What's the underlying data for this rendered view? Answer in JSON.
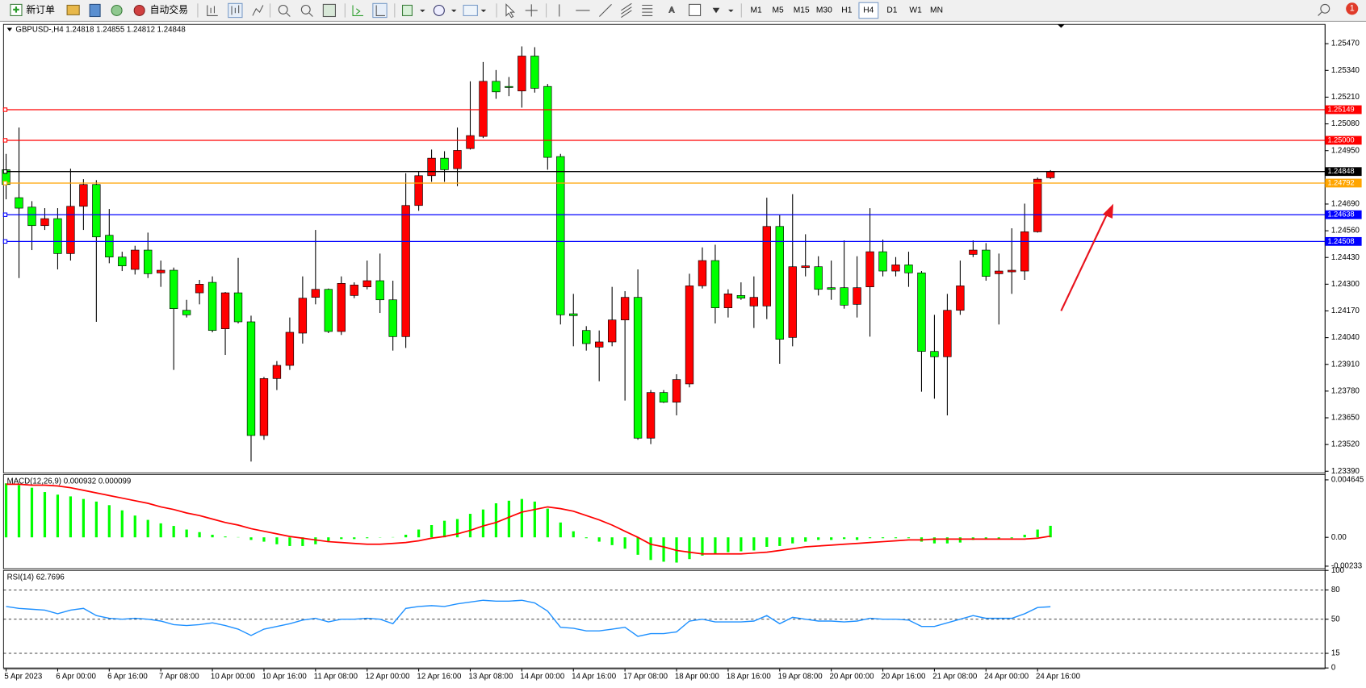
{
  "toolbar": {
    "new_order": "新订单",
    "auto_trading": "自动交易",
    "timeframes": [
      "M1",
      "M5",
      "M15",
      "M30",
      "H1",
      "H4",
      "D1",
      "W1",
      "MN"
    ],
    "active_timeframe": "H4",
    "notification_count": 1
  },
  "chart_data": [
    {
      "type": "candlestick",
      "title": "GBPUSD-,H4  1.24818 1.24855 1.24812 1.24848",
      "categories": [
        "5 Apr 2023",
        null,
        null,
        null,
        "6 Apr 00:00",
        null,
        null,
        null,
        "6 Apr 16:00",
        null,
        null,
        null,
        "7 Apr 08:00",
        null,
        null,
        null,
        "10 Apr 00:00",
        null,
        null,
        null,
        "10 Apr 16:00",
        null,
        null,
        null,
        "11 Apr 08:00",
        null,
        null,
        null,
        "12 Apr 00:00",
        null,
        null,
        null,
        "12 Apr 16:00",
        null,
        null,
        null,
        "13 Apr 08:00",
        null,
        null,
        null,
        "14 Apr 00:00",
        null,
        null,
        null,
        "14 Apr 16:00",
        null,
        null,
        null,
        "17 Apr 08:00",
        null,
        null,
        null,
        "18 Apr 00:00",
        null,
        null,
        null,
        "18 Apr 16:00",
        null,
        null,
        null,
        "19 Apr 08:00",
        null,
        null,
        null,
        "20 Apr 00:00",
        null,
        null,
        null,
        "20 Apr 16:00",
        null,
        null,
        null,
        "21 Apr 08:00",
        null,
        null,
        null,
        "24 Apr 00:00",
        null,
        null,
        null,
        "24 Apr 16:00",
        null
      ],
      "open": [
        1.24857,
        1.24721,
        1.24675,
        1.24585,
        1.24619,
        1.24449,
        1.24679,
        1.24785,
        1.24538,
        1.24432,
        1.24372,
        1.24466,
        1.24355,
        1.24368,
        1.24173,
        1.24258,
        1.24309,
        1.24083,
        1.24258,
        1.24117,
        1.23564,
        1.23841,
        1.23905,
        1.24062,
        1.24236,
        1.24275,
        1.2407,
        1.24245,
        1.24287,
        1.24317,
        1.24224,
        1.24045,
        1.24683,
        1.24828,
        1.24913,
        1.24862,
        1.2496,
        1.25019,
        1.25287,
        1.25262,
        1.2524,
        1.2541,
        1.25262,
        1.24921,
        1.24156,
        1.24075,
        1.23994,
        1.24019,
        1.24126,
        1.24236,
        1.23551,
        1.23773,
        1.23726,
        1.23815,
        1.24292,
        1.24415,
        1.24185,
        1.24245,
        1.24194,
        1.24194,
        1.24581,
        1.24041,
        1.24381,
        1.24385,
        1.24283,
        1.24283,
        1.24202,
        1.24287,
        1.24458,
        1.24364,
        1.24394,
        1.24355,
        1.23973,
        1.23947,
        1.24173,
        1.24445,
        1.24466,
        1.24351,
        1.2436,
        1.24364,
        1.24555,
        1.24818
      ],
      "high": [
        1.24934,
        1.25062,
        1.24704,
        1.2467,
        1.2467,
        1.24862,
        1.24811,
        1.24806,
        1.24666,
        1.24458,
        1.24487,
        1.24551,
        1.24415,
        1.24381,
        1.24224,
        1.24321,
        1.24338,
        1.24262,
        1.24428,
        1.24147,
        1.23849,
        1.23926,
        1.24138,
        1.24338,
        1.24564,
        1.24279,
        1.24338,
        1.24309,
        1.24415,
        1.24449,
        1.24317,
        1.2484,
        1.24849,
        1.24955,
        1.24947,
        1.25062,
        1.25287,
        1.25381,
        1.25342,
        1.25308,
        1.25457,
        1.25453,
        1.25274,
        1.24934,
        1.24253,
        1.24096,
        1.24075,
        1.24287,
        1.24266,
        1.24372,
        1.23785,
        1.23785,
        1.23862,
        1.24351,
        1.24479,
        1.24492,
        1.24275,
        1.24309,
        1.24338,
        1.24721,
        1.24636,
        1.24738,
        1.24543,
        1.24436,
        1.24415,
        1.24513,
        1.24436,
        1.2467,
        1.24517,
        1.24432,
        1.24458,
        1.24364,
        1.24151,
        1.24253,
        1.24415,
        1.24513,
        1.245,
        1.24449,
        1.24572,
        1.24692,
        1.24819,
        1.24855
      ],
      "low": [
        1.24713,
        1.2433,
        1.24466,
        1.24564,
        1.24372,
        1.24415,
        1.24564,
        1.24117,
        1.24402,
        1.24364,
        1.24347,
        1.2433,
        1.24287,
        1.23883,
        1.24138,
        1.24202,
        1.24066,
        1.23956,
        1.24109,
        1.23437,
        1.23543,
        1.23785,
        1.23883,
        1.24011,
        1.24202,
        1.24062,
        1.24053,
        1.24232,
        1.24275,
        1.2416,
        1.23977,
        1.2399,
        1.24657,
        1.24798,
        1.24798,
        1.24777,
        1.24955,
        1.25011,
        1.25202,
        1.25215,
        1.25159,
        1.25232,
        1.24857,
        1.24104,
        1.23998,
        1.23977,
        1.23828,
        1.23998,
        1.23734,
        1.23543,
        1.23522,
        1.23722,
        1.23662,
        1.23798,
        1.24279,
        1.24109,
        1.24138,
        1.24224,
        1.24087,
        1.2413,
        1.23913,
        1.23998,
        1.24338,
        1.24245,
        1.24224,
        1.24181,
        1.24138,
        1.24045,
        1.24338,
        1.24338,
        1.24287,
        1.23777,
        1.23743,
        1.23662,
        1.24151,
        1.24432,
        1.24317,
        1.24104,
        1.24253,
        1.24321,
        1.24551,
        1.24812
      ],
      "close": [
        1.24785,
        1.2467,
        1.24585,
        1.24619,
        1.24449,
        1.24679,
        1.24785,
        1.2453,
        1.24432,
        1.24389,
        1.24466,
        1.24351,
        1.24368,
        1.24181,
        1.24151,
        1.243,
        1.24075,
        1.24258,
        1.24117,
        1.23564,
        1.23841,
        1.23905,
        1.24066,
        1.24232,
        1.24275,
        1.2407,
        1.24304,
        1.24296,
        1.24317,
        1.24224,
        1.24045,
        1.24683,
        1.24828,
        1.24913,
        1.24857,
        1.24951,
        1.25023,
        1.25287,
        1.25236,
        1.25257,
        1.2541,
        1.25253,
        1.24917,
        1.24151,
        1.24147,
        1.24011,
        1.24019,
        1.24126,
        1.24236,
        1.23551,
        1.23773,
        1.23726,
        1.23836,
        1.24292,
        1.24415,
        1.24185,
        1.24253,
        1.24232,
        1.24236,
        1.24581,
        1.24032,
        1.24385,
        1.24389,
        1.24275,
        1.24275,
        1.24198,
        1.24283,
        1.24458,
        1.24364,
        1.24394,
        1.24355,
        1.23973,
        1.23947,
        1.24173,
        1.24292,
        1.24466,
        1.24338,
        1.24364,
        1.24368,
        1.24555,
        1.24811,
        1.24848
      ],
      "up_color": "#ff0000",
      "down_color": "#00ff00",
      "wick_color": "#000000",
      "ylim": [
        1.23382,
        1.25564
      ],
      "yticks": [
        {
          "value": 1.2547,
          "label": "1.25470"
        },
        {
          "value": 1.2534,
          "label": "1.25340"
        },
        {
          "value": 1.2521,
          "label": "1.25210"
        },
        {
          "value": 1.2508,
          "label": "1.25080"
        },
        {
          "value": 1.2495,
          "label": "1.24950"
        },
        {
          "value": 1.2469,
          "label": "1.24690"
        },
        {
          "value": 1.2456,
          "label": "1.24560"
        },
        {
          "value": 1.2443,
          "label": "1.24430"
        },
        {
          "value": 1.243,
          "label": "1.24300"
        },
        {
          "value": 1.2417,
          "label": "1.24170"
        },
        {
          "value": 1.2404,
          "label": "1.24040"
        },
        {
          "value": 1.2391,
          "label": "1.23910"
        },
        {
          "value": 1.2378,
          "label": "1.23780"
        },
        {
          "value": 1.2365,
          "label": "1.23650"
        },
        {
          "value": 1.2352,
          "label": "1.23520"
        },
        {
          "value": 1.2339,
          "label": "1.23390"
        }
      ],
      "levels": {
        "values": [
          1.25149,
          1.25,
          1.24848,
          1.24792,
          1.24638,
          1.24508
        ],
        "value_labels": [
          "1.25149",
          "1.25000",
          "1.24848",
          "1.24792",
          "1.24638",
          "1.24508"
        ],
        "colors": [
          "#ff0000",
          "#ff0000",
          "#000000",
          "#ffa500",
          "#0000ff",
          "#0000ff"
        ]
      }
    },
    {
      "type": "macd",
      "title": "MACD(12,26,9) 0.000932 0.000099",
      "values": [
        0.00436,
        0.00422,
        0.00401,
        0.00366,
        0.00345,
        0.00331,
        0.0031,
        0.00289,
        0.0026,
        0.00218,
        0.00176,
        0.00141,
        0.00113,
        0.00092,
        0.00063,
        0.00042,
        0.00021,
        7e-05,
        2e-05,
        -0.00021,
        -0.00035,
        -0.00056,
        -0.0007,
        -0.0007,
        -0.00056,
        -0.00035,
        -0.00014,
        -0.00014,
        -7e-05,
        -2e-05,
        2e-05,
        0.00021,
        0.00063,
        0.00099,
        0.00134,
        0.00148,
        0.0019,
        0.00225,
        0.00275,
        0.00296,
        0.0031,
        0.00289,
        0.00232,
        0.0012,
        0.00049,
        -7e-05,
        -0.00035,
        -0.00063,
        -0.00092,
        -0.00141,
        -0.00183,
        -0.00197,
        -0.00204,
        -0.00176,
        -0.00148,
        -0.00134,
        -0.0012,
        -0.00113,
        -0.00106,
        -0.00077,
        -0.0007,
        -0.00049,
        -0.00035,
        -0.00021,
        -0.00021,
        -0.00014,
        -0.00021,
        -7e-05,
        -7e-05,
        -7e-05,
        -7e-05,
        -0.00035,
        -0.00049,
        -0.00049,
        -0.00042,
        -0.00021,
        -0.00014,
        -0.00014,
        -7e-05,
        0.00021,
        0.00063,
        0.000932
      ],
      "signal": [
        0.00429,
        0.00429,
        0.00422,
        0.00422,
        0.00415,
        0.00401,
        0.0038,
        0.00359,
        0.00338,
        0.00317,
        0.00296,
        0.00275,
        0.00246,
        0.00225,
        0.00197,
        0.00176,
        0.00148,
        0.0012,
        0.00099,
        0.0007,
        0.00049,
        0.00028,
        7e-05,
        -7e-05,
        -0.00021,
        -0.00035,
        -0.00042,
        -0.00049,
        -0.00056,
        -0.00056,
        -0.00049,
        -0.00042,
        -0.00028,
        -7e-05,
        7e-05,
        0.00028,
        0.00056,
        0.00092,
        0.0012,
        0.00162,
        0.00204,
        0.00225,
        0.00246,
        0.00232,
        0.00211,
        0.00176,
        0.00141,
        0.00099,
        0.00049,
        0,
        -0.00056,
        -0.00077,
        -0.00106,
        -0.0012,
        -0.00134,
        -0.00134,
        -0.00134,
        -0.00134,
        -0.00127,
        -0.0012,
        -0.00106,
        -0.00092,
        -0.00077,
        -0.0007,
        -0.00063,
        -0.00056,
        -0.00049,
        -0.00042,
        -0.00035,
        -0.00028,
        -0.00021,
        -0.00021,
        -0.00014,
        -0.00014,
        -0.00014,
        -0.00014,
        -0.00014,
        -0.00014,
        -0.00014,
        -0.00014,
        -7e-05,
        9.9e-05
      ],
      "color": "#00ff00",
      "signal_color": "#ff0000",
      "ylim": [
        -0.002534,
        0.005067
      ],
      "yticks": [
        0.004645,
        {
          "value": 0,
          "label": "0.00"
        },
        -0.00233
      ]
    },
    {
      "type": "line",
      "title": "RSI(14) 62.7696",
      "values": [
        63.0,
        61.1,
        60.2,
        59.3,
        55.6,
        59.3,
        61.1,
        53.7,
        50.9,
        50.0,
        50.9,
        50.0,
        48.1,
        44.4,
        43.5,
        44.4,
        46.3,
        43.5,
        39.8,
        33.3,
        39.8,
        42.6,
        45.4,
        49.1,
        50.9,
        47.2,
        50.0,
        50.0,
        50.9,
        50.0,
        45.4,
        61.1,
        63.0,
        63.9,
        63.0,
        65.7,
        67.6,
        69.4,
        68.5,
        68.5,
        69.4,
        66.7,
        58.3,
        41.7,
        40.7,
        38.0,
        38.0,
        39.8,
        41.7,
        32.4,
        35.2,
        35.2,
        37.0,
        48.1,
        50.0,
        47.2,
        47.2,
        47.2,
        48.1,
        53.7,
        45.4,
        51.9,
        50.0,
        48.1,
        48.1,
        47.2,
        48.1,
        50.9,
        50.0,
        50.0,
        49.1,
        42.6,
        42.6,
        46.3,
        50.0,
        53.7,
        50.9,
        50.9,
        50.9,
        55.6,
        62.0,
        62.7696
      ],
      "color": "#1e90ff",
      "ylim": [
        0,
        100
      ],
      "yticks": [
        100,
        80,
        50,
        15,
        0
      ],
      "levels": [
        80,
        50,
        15
      ]
    }
  ]
}
